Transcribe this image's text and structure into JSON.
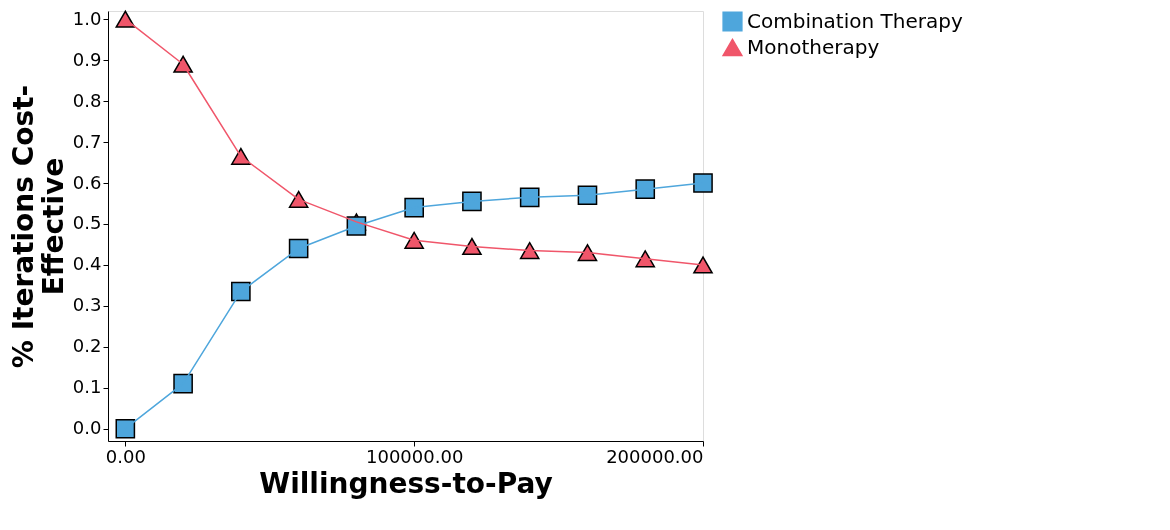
{
  "chart_data": {
    "type": "line",
    "xlabel": "Willingness-to-Pay",
    "ylabel": "% Iterations Cost-Effective",
    "x": [
      0,
      20000,
      40000,
      60000,
      80000,
      100000,
      120000,
      140000,
      160000,
      180000,
      200000
    ],
    "series": [
      {
        "name": "Combination Therapy",
        "color": "#4ea6dc",
        "marker": "square",
        "values": [
          0,
          0.11,
          0.335,
          0.44,
          0.495,
          0.54,
          0.555,
          0.565,
          0.57,
          0.585,
          0.6
        ]
      },
      {
        "name": "Monotherapy",
        "color": "#f0566a",
        "marker": "triangle",
        "values": [
          1,
          0.89,
          0.665,
          0.56,
          0.505,
          0.46,
          0.445,
          0.435,
          0.43,
          0.415,
          0.4
        ]
      }
    ],
    "xlim": [
      -6000,
      200000
    ],
    "xticks": [
      {
        "value": 0,
        "label": "0.00"
      },
      {
        "value": 100000,
        "label": "100000.00"
      },
      {
        "value": 200000,
        "label": "200000.00"
      }
    ],
    "ylim": [
      -0.03,
      1.02
    ],
    "yticks": [
      {
        "value": 0,
        "label": "0.0"
      },
      {
        "value": 0.1,
        "label": "0.1"
      },
      {
        "value": 0.2,
        "label": "0.2"
      },
      {
        "value": 0.3,
        "label": "0.3"
      },
      {
        "value": 0.4,
        "label": "0.4"
      },
      {
        "value": 0.5,
        "label": "0.5"
      },
      {
        "value": 0.6,
        "label": "0.6"
      },
      {
        "value": 0.7,
        "label": "0.7"
      },
      {
        "value": 0.8,
        "label": "0.8"
      },
      {
        "value": 0.9,
        "label": "0.9"
      },
      {
        "value": 1,
        "label": "1.0"
      }
    ],
    "grid": false,
    "legend": "right",
    "line_style": "solid"
  }
}
